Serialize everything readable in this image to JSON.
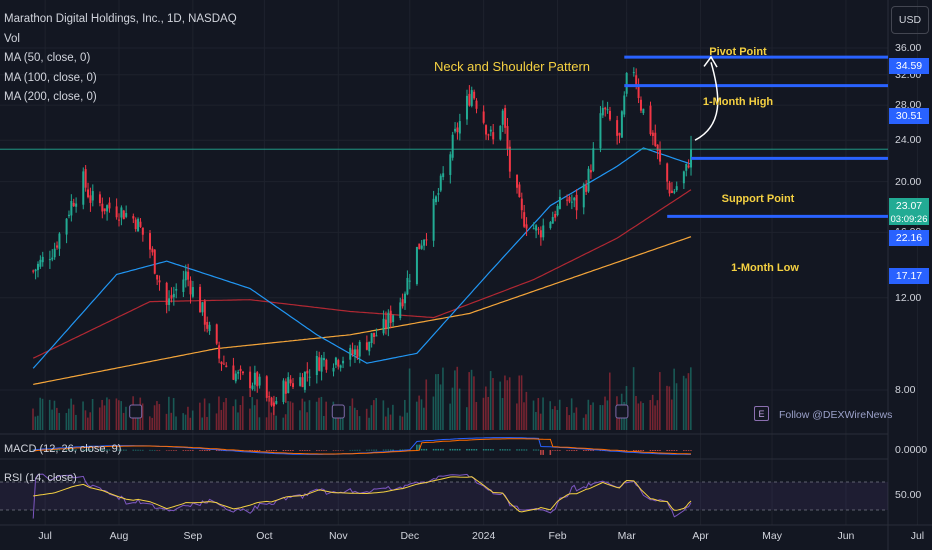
{
  "legend": {
    "symbol": "Marathon Digital Holdings, Inc., 1D, NASDAQ",
    "vol": "Vol",
    "ma50": "MA (50, close, 0)",
    "ma100": "MA (100, close, 0)",
    "ma200": "MA (200, close, 0)",
    "macd": "MACD (12, 26, close, 9)",
    "rsi": "RSI (14, close)"
  },
  "currency_button": "USD",
  "annotations": {
    "pattern": "Neck and Shoulder Pattern",
    "pivot": "Pivot Point",
    "high": "1-Month High",
    "support": "Support Point",
    "low": "1-Month Low",
    "follow": "Follow @DEXWireNews"
  },
  "price_tags": {
    "pivot": "34.59",
    "high": "30.51",
    "current": "23.07",
    "countdown": "03:09:26",
    "support": "22.16",
    "low": "17.17"
  },
  "macd_value": "0.0000",
  "rsi_value": "50.00",
  "colors": {
    "background": "#131722",
    "up": "#22ab94",
    "down": "#f23645",
    "level": "#2962ff",
    "ma50": "#2196f3",
    "ma100": "#b22833",
    "ma200": "#f4a53a",
    "macd": "#2962ff",
    "signal": "#ff6d00",
    "rsi": "#7e57c2",
    "rsi_ma": "#f5d142",
    "annotation": "#f5d142"
  },
  "chart_data": {
    "type": "candlestick",
    "title": "Marathon Digital Holdings, Inc., 1D, NASDAQ",
    "x_tick_labels": [
      "Jul",
      "Aug",
      "Sep",
      "Oct",
      "Nov",
      "Dec",
      "2024",
      "Feb",
      "Mar",
      "Apr",
      "May",
      "Jun",
      "Jul"
    ],
    "y_tick_labels": [
      "36.00",
      "32.00",
      "28.00",
      "24.00",
      "20.00",
      "16.00",
      "12.00",
      "8.00"
    ],
    "y_scale": "log",
    "ylim": [
      5.5,
      38.5
    ],
    "levels": [
      {
        "name": "Pivot Point",
        "value": 34.59
      },
      {
        "name": "1-Month High",
        "value": 30.51
      },
      {
        "name": "Support Point",
        "value": 22.16
      },
      {
        "name": "1-Month Low",
        "value": 17.17
      }
    ],
    "last_price": 23.07,
    "price_keypoints": [
      [
        "2023-06-26",
        13.5
      ],
      [
        "2023-07-05",
        15.0
      ],
      [
        "2023-07-12",
        18.2
      ],
      [
        "2023-07-17",
        20.1
      ],
      [
        "2023-07-20",
        18.6
      ],
      [
        "2023-07-25",
        18.0
      ],
      [
        "2023-08-02",
        17.6
      ],
      [
        "2023-08-08",
        16.9
      ],
      [
        "2023-08-14",
        14.9
      ],
      [
        "2023-08-21",
        11.6
      ],
      [
        "2023-08-29",
        13.3
      ],
      [
        "2023-09-05",
        11.3
      ],
      [
        "2023-09-12",
        9.2
      ],
      [
        "2023-09-21",
        8.4
      ],
      [
        "2023-09-28",
        8.3
      ],
      [
        "2023-10-04",
        7.4
      ],
      [
        "2023-10-10",
        8.2
      ],
      [
        "2023-10-16",
        8.4
      ],
      [
        "2023-10-24",
        9.1
      ],
      [
        "2023-10-31",
        9.2
      ],
      [
        "2023-11-06",
        9.3
      ],
      [
        "2023-11-13",
        9.9
      ],
      [
        "2023-11-20",
        10.5
      ],
      [
        "2023-11-28",
        12.1
      ],
      [
        "2023-12-04",
        14.8
      ],
      [
        "2023-12-08",
        16.2
      ],
      [
        "2023-12-13",
        19.0
      ],
      [
        "2023-12-20",
        24.5
      ],
      [
        "2023-12-27",
        30.0
      ],
      [
        "2024-01-02",
        25.6
      ],
      [
        "2024-01-05",
        23.8
      ],
      [
        "2024-01-09",
        27.0
      ],
      [
        "2024-01-12",
        21.1
      ],
      [
        "2024-01-17",
        17.2
      ],
      [
        "2024-01-24",
        16.0
      ],
      [
        "2024-01-31",
        17.5
      ],
      [
        "2024-02-05",
        18.6
      ],
      [
        "2024-02-09",
        18.0
      ],
      [
        "2024-02-14",
        20.5
      ],
      [
        "2024-02-20",
        27.5
      ],
      [
        "2024-02-23",
        26.0
      ],
      [
        "2024-02-27",
        24.0
      ],
      [
        "2024-03-01",
        31.0
      ],
      [
        "2024-03-04",
        33.0
      ],
      [
        "2024-03-07",
        28.0
      ],
      [
        "2024-03-12",
        24.5
      ],
      [
        "2024-03-15",
        21.5
      ],
      [
        "2024-03-20",
        19.0
      ],
      [
        "2024-03-26",
        21.0
      ],
      [
        "2024-03-28",
        23.07
      ]
    ],
    "ma50_keypoints": [
      [
        "2023-06-26",
        8.8
      ],
      [
        "2023-07-31",
        13.3
      ],
      [
        "2023-08-21",
        14.1
      ],
      [
        "2023-09-25",
        12.5
      ],
      [
        "2023-10-23",
        10.2
      ],
      [
        "2023-11-13",
        9.0
      ],
      [
        "2023-12-04",
        9.4
      ],
      [
        "2024-01-02",
        13.2
      ],
      [
        "2024-01-29",
        18.0
      ],
      [
        "2024-02-26",
        21.4
      ],
      [
        "2024-03-08",
        23.2
      ],
      [
        "2024-03-28",
        21.6
      ]
    ],
    "ma100_keypoints": [
      [
        "2023-06-26",
        9.2
      ],
      [
        "2023-08-14",
        11.8
      ],
      [
        "2023-09-25",
        11.9
      ],
      [
        "2023-11-06",
        11.3
      ],
      [
        "2023-12-11",
        11.0
      ],
      [
        "2024-01-22",
        13.0
      ],
      [
        "2024-02-26",
        15.6
      ],
      [
        "2024-03-28",
        19.3
      ]
    ],
    "ma200_keypoints": [
      [
        "2023-06-26",
        8.2
      ],
      [
        "2023-09-11",
        9.6
      ],
      [
        "2023-11-06",
        10.2
      ],
      [
        "2023-12-26",
        11.2
      ],
      [
        "2024-02-05",
        13.0
      ],
      [
        "2024-03-28",
        15.7
      ]
    ]
  }
}
